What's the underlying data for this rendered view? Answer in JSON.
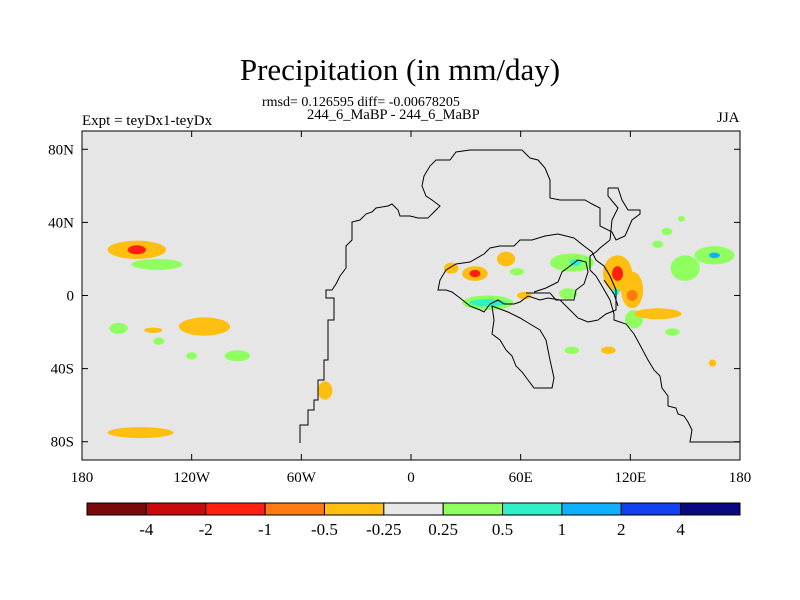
{
  "chart_data": {
    "type": "heatmap",
    "title": "Precipitation (in mm/day)",
    "stats_line": "rmsd= 0.126595 diff= -0.00678205",
    "subtitle": "244_6_MaBP - 244_6_MaBP",
    "left_label": "Expt = teyDx1-teyDx",
    "right_label": "JJA",
    "x_ticks": [
      {
        "value": -180,
        "label": "180"
      },
      {
        "value": -120,
        "label": "120W"
      },
      {
        "value": -60,
        "label": "60W"
      },
      {
        "value": 0,
        "label": "0"
      },
      {
        "value": 60,
        "label": "60E"
      },
      {
        "value": 120,
        "label": "120E"
      },
      {
        "value": 180,
        "label": "180"
      }
    ],
    "y_ticks": [
      {
        "value": 80,
        "label": "80N"
      },
      {
        "value": 40,
        "label": "40N"
      },
      {
        "value": 0,
        "label": "0"
      },
      {
        "value": -40,
        "label": "40S"
      },
      {
        "value": -80,
        "label": "80S"
      }
    ],
    "xlim": [
      -180,
      180
    ],
    "ylim": [
      -90,
      90
    ],
    "colorbar": {
      "colors": [
        "#7a0a0a",
        "#c80a0a",
        "#ff2010",
        "#ff7a10",
        "#ffbf10",
        "#e8e8e8",
        "#90ff60",
        "#30f0c8",
        "#10b0ff",
        "#1040f0",
        "#0a0a80"
      ],
      "labels": [
        "-4",
        "-2",
        "-1",
        "-0.5",
        "-0.25",
        "0.25",
        "0.5",
        "1",
        "2",
        "4"
      ]
    },
    "anomaly_regions": [
      {
        "lon": -150,
        "lat": 25,
        "rx": 16,
        "ry": 5,
        "level": 4
      },
      {
        "lon": -150,
        "lat": 25,
        "rx": 5,
        "ry": 2.5,
        "level": 2
      },
      {
        "lon": -139,
        "lat": 17,
        "rx": 14,
        "ry": 3,
        "level": 6
      },
      {
        "lon": -160,
        "lat": -18,
        "rx": 5,
        "ry": 3,
        "level": 6
      },
      {
        "lon": -141,
        "lat": -19,
        "rx": 5,
        "ry": 1.5,
        "level": 4
      },
      {
        "lon": -113,
        "lat": -17,
        "rx": 14,
        "ry": 5,
        "level": 4
      },
      {
        "lon": -138,
        "lat": -25,
        "rx": 3,
        "ry": 2,
        "level": 6
      },
      {
        "lon": -95,
        "lat": -33,
        "rx": 7,
        "ry": 3,
        "level": 6
      },
      {
        "lon": -120,
        "lat": -33,
        "rx": 3,
        "ry": 2,
        "level": 6
      },
      {
        "lon": -148,
        "lat": -75,
        "rx": 18,
        "ry": 3,
        "level": 4
      },
      {
        "lon": -47,
        "lat": -52,
        "rx": 4,
        "ry": 5,
        "level": 4
      },
      {
        "lon": 22,
        "lat": 15,
        "rx": 4,
        "ry": 3,
        "level": 4
      },
      {
        "lon": 35,
        "lat": 12,
        "rx": 7,
        "ry": 4,
        "level": 4
      },
      {
        "lon": 35,
        "lat": 12,
        "rx": 3,
        "ry": 2,
        "level": 2
      },
      {
        "lon": 52,
        "lat": 20,
        "rx": 5,
        "ry": 4,
        "level": 4
      },
      {
        "lon": 58,
        "lat": 13,
        "rx": 4,
        "ry": 2,
        "level": 6
      },
      {
        "lon": 42,
        "lat": -4,
        "rx": 14,
        "ry": 4,
        "level": 6
      },
      {
        "lon": 42,
        "lat": -4,
        "rx": 10,
        "ry": 2,
        "level": 7
      },
      {
        "lon": 62,
        "lat": 0,
        "rx": 4,
        "ry": 2,
        "level": 4
      },
      {
        "lon": 88,
        "lat": 18,
        "rx": 12,
        "ry": 5,
        "level": 6
      },
      {
        "lon": 90,
        "lat": 18,
        "rx": 3,
        "ry": 2,
        "level": 7
      },
      {
        "lon": 86,
        "lat": 1,
        "rx": 5,
        "ry": 3,
        "level": 6
      },
      {
        "lon": 113,
        "lat": 12,
        "rx": 8,
        "ry": 10,
        "level": 4
      },
      {
        "lon": 113,
        "lat": 12,
        "rx": 3,
        "ry": 4,
        "level": 2
      },
      {
        "lon": 121,
        "lat": 3,
        "rx": 6,
        "ry": 10,
        "level": 4
      },
      {
        "lon": 121,
        "lat": 0,
        "rx": 3,
        "ry": 3,
        "level": 3
      },
      {
        "lon": 112,
        "lat": 2,
        "rx": 2,
        "ry": 2,
        "level": 7
      },
      {
        "lon": 122,
        "lat": -13,
        "rx": 5,
        "ry": 5,
        "level": 6
      },
      {
        "lon": 135,
        "lat": -10,
        "rx": 13,
        "ry": 3,
        "level": 4
      },
      {
        "lon": 143,
        "lat": -20,
        "rx": 4,
        "ry": 2,
        "level": 6
      },
      {
        "lon": 150,
        "lat": 15,
        "rx": 8,
        "ry": 7,
        "level": 6
      },
      {
        "lon": 166,
        "lat": 22,
        "rx": 11,
        "ry": 5,
        "level": 6
      },
      {
        "lon": 166,
        "lat": 22,
        "rx": 3,
        "ry": 1.5,
        "level": 8
      },
      {
        "lon": 135,
        "lat": 28,
        "rx": 3,
        "ry": 2,
        "level": 6
      },
      {
        "lon": 140,
        "lat": 35,
        "rx": 3,
        "ry": 2,
        "level": 6
      },
      {
        "lon": 88,
        "lat": -30,
        "rx": 4,
        "ry": 2,
        "level": 6
      },
      {
        "lon": 108,
        "lat": -30,
        "rx": 4,
        "ry": 2,
        "level": 4
      },
      {
        "lon": 148,
        "lat": 42,
        "rx": 2,
        "ry": 1.5,
        "level": 6
      },
      {
        "lon": 165,
        "lat": -37,
        "rx": 2,
        "ry": 2,
        "level": 4
      }
    ]
  }
}
